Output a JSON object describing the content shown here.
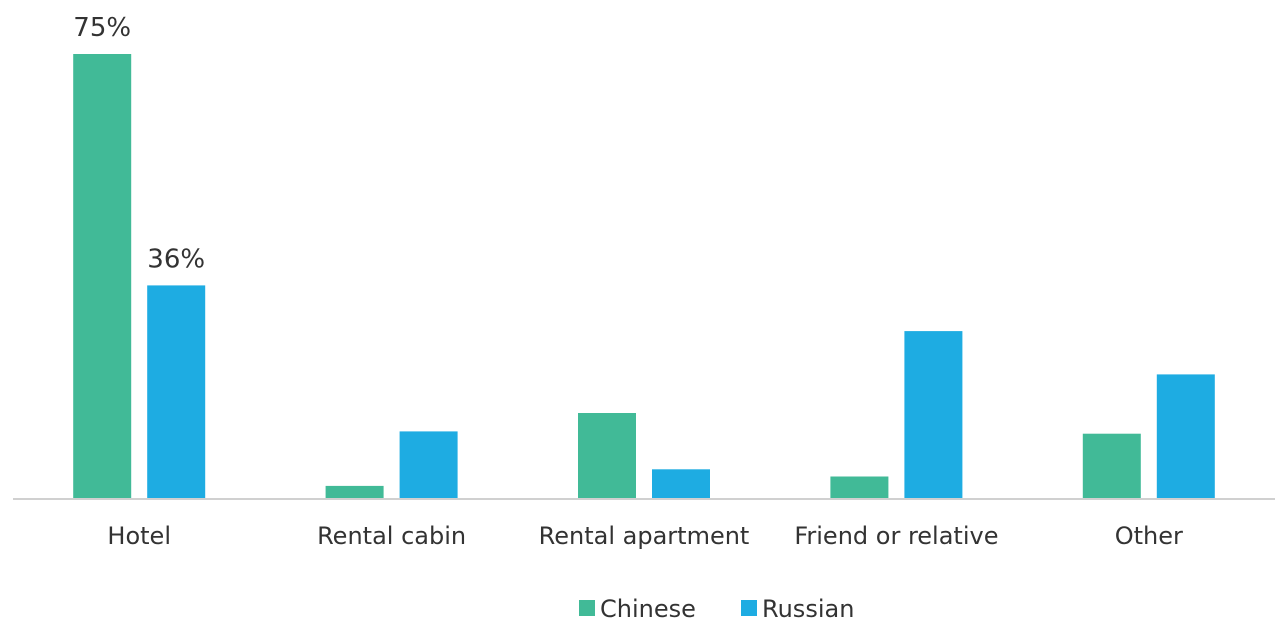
{
  "chart_data": {
    "type": "bar",
    "categories": [
      "Hotel",
      "Rental cabin",
      "Rental apartment",
      "Friend or relative",
      "Other"
    ],
    "series": [
      {
        "name": "Chinese",
        "color": "#41BA97",
        "values": [
          75,
          2.2,
          14.5,
          3.8,
          11
        ],
        "data_labels": [
          "75%",
          "",
          "",
          "",
          ""
        ]
      },
      {
        "name": "Russian",
        "color": "#1EACE2",
        "values": [
          36,
          11.4,
          5,
          28.3,
          21
        ]
      }
    ],
    "data_labels": {
      "Russian": [
        "36%",
        "",
        "",
        "",
        ""
      ]
    },
    "ylim": [
      0,
      75
    ],
    "grid": false,
    "legend_position": "bottom",
    "title": "",
    "xlabel": "",
    "ylabel": ""
  }
}
